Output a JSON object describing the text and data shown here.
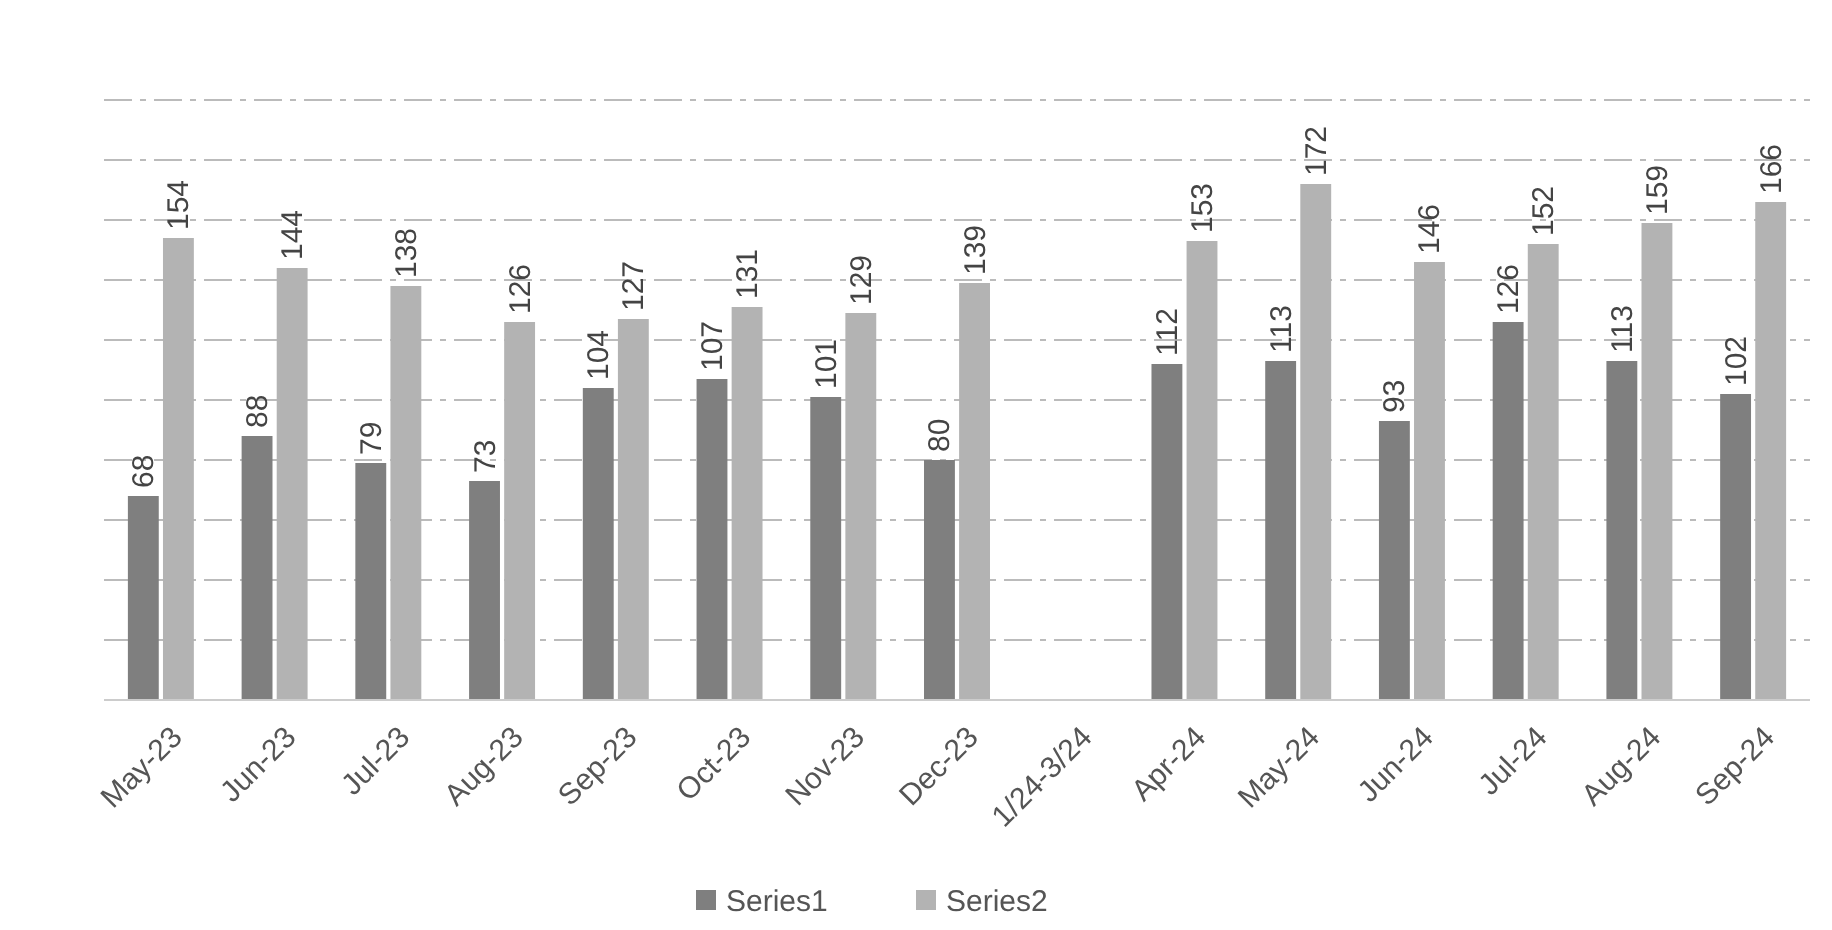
{
  "chart_data": {
    "type": "bar",
    "categories": [
      "May-23",
      "Jun-23",
      "Jul-23",
      "Aug-23",
      "Sep-23",
      "Oct-23",
      "Nov-23",
      "Dec-23",
      "1/24-3/24",
      "Apr-24",
      "May-24",
      "Jun-24",
      "Jul-24",
      "Aug-24",
      "Sep-24"
    ],
    "series": [
      {
        "name": "Series1",
        "color": "#7f7f7f",
        "values": [
          68,
          88,
          79,
          73,
          104,
          107,
          101,
          80,
          null,
          112,
          113,
          93,
          126,
          113,
          102
        ]
      },
      {
        "name": "Series2",
        "color": "#b3b3b3",
        "values": [
          154,
          144,
          138,
          126,
          127,
          131,
          129,
          139,
          null,
          153,
          172,
          146,
          152,
          159,
          166
        ]
      }
    ],
    "ylim": [
      0,
      200
    ],
    "yticks": [
      {
        "value": 0,
        "label": null
      },
      {
        "value": 20,
        "label": null
      },
      {
        "value": 40,
        "label": null
      },
      {
        "value": 60,
        "label": null
      },
      {
        "value": 80,
        "label": null
      },
      {
        "value": 100,
        "label": null
      },
      {
        "value": 120,
        "label": null
      },
      {
        "value": 140,
        "label": null
      },
      {
        "value": 160,
        "label": null
      },
      {
        "value": 180,
        "label": null
      },
      {
        "value": 200,
        "label": null
      }
    ],
    "tick_labels": "x",
    "grid": "y",
    "data_labels": true,
    "legend": "bottom"
  }
}
